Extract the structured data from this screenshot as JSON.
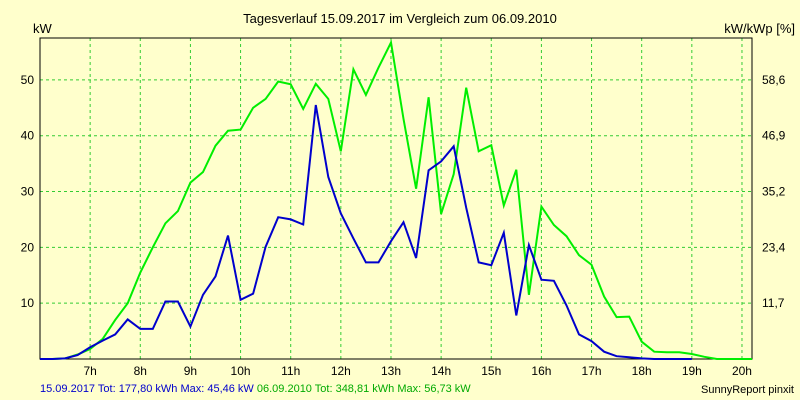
{
  "chart_data": {
    "type": "line",
    "title": "Tagesverlauf 15.09.2017 im Vergleich zum 06.09.2010",
    "ylabel": "kW",
    "y2label": "kW/kWp [%]",
    "xlim": [
      6,
      20.2
    ],
    "ylim": [
      0,
      57.5
    ],
    "categories": [
      "7h",
      "8h",
      "9h",
      "10h",
      "11h",
      "12h",
      "13h",
      "14h",
      "15h",
      "16h",
      "17h",
      "18h",
      "19h",
      "20h"
    ],
    "yticks": [
      10,
      20,
      30,
      40,
      50
    ],
    "y2ticks": [
      "11,7",
      "23,4",
      "35,2",
      "46,9",
      "58,6"
    ],
    "grid": true,
    "series": [
      {
        "color": "#0000cc",
        "x": [
          6.0,
          6.25,
          6.5,
          6.75,
          7.0,
          7.25,
          7.5,
          7.75,
          8.0,
          8.25,
          8.5,
          8.75,
          9.0,
          9.25,
          9.5,
          9.75,
          10.0,
          10.25,
          10.5,
          10.75,
          11.0,
          11.25,
          11.5,
          11.75,
          12.0,
          12.25,
          12.5,
          12.75,
          13.0,
          13.25,
          13.5,
          13.75,
          14.0,
          14.25,
          14.5,
          14.75,
          15.0,
          15.25,
          15.5,
          15.75,
          16.0,
          16.25,
          16.5,
          16.75,
          17.0,
          17.25,
          17.5,
          17.75,
          18.0,
          18.25,
          18.5,
          18.75,
          19.0
        ],
        "values": [
          0,
          0,
          0.1,
          0.7,
          2.1,
          3.3,
          4.4,
          7.1,
          5.4,
          5.4,
          10.3,
          10.3,
          5.8,
          11.5,
          14.8,
          22.1,
          10.6,
          11.7,
          20.1,
          25.4,
          25,
          24.1,
          45.5,
          32.6,
          26.1,
          21.6,
          17.3,
          17.3,
          21.1,
          24.5,
          18.1,
          33.8,
          35.4,
          38.1,
          27.1,
          17.3,
          16.8,
          22.6,
          7.8,
          20.4,
          14.2,
          14,
          9.6,
          4.4,
          3.2,
          1.3,
          0.5,
          0.3,
          0.1,
          0,
          0,
          0,
          0
        ]
      },
      {
        "color": "#00ee00",
        "x": [
          6.0,
          6.25,
          6.5,
          6.75,
          7.0,
          7.25,
          7.5,
          7.75,
          8.0,
          8.25,
          8.5,
          8.75,
          9.0,
          9.25,
          9.5,
          9.75,
          10.0,
          10.25,
          10.5,
          10.75,
          11.0,
          11.25,
          11.5,
          11.75,
          12.0,
          12.25,
          12.5,
          12.75,
          13.0,
          13.25,
          13.5,
          13.75,
          14.0,
          14.25,
          14.5,
          14.75,
          15.0,
          15.25,
          15.5,
          15.75,
          16.0,
          16.25,
          16.5,
          16.75,
          17.0,
          17.25,
          17.5,
          17.75,
          18.0,
          18.25,
          18.5,
          18.75,
          19.0,
          19.25,
          19.5,
          19.75,
          20.0,
          20.2
        ],
        "values": [
          0,
          0,
          0.1,
          0.8,
          1.8,
          3.6,
          7,
          10,
          15.5,
          20,
          24.3,
          26.5,
          31.6,
          33.5,
          38.2,
          40.9,
          41.1,
          45,
          46.6,
          49.7,
          49.2,
          44.8,
          49.3,
          46.6,
          37.2,
          51.9,
          47.3,
          52.2,
          56.7,
          43,
          30.5,
          46.9,
          26,
          33.1,
          48.6,
          37.2,
          38.3,
          27.5,
          33.9,
          11.5,
          27.3,
          24,
          22,
          18.6,
          16.9,
          11.2,
          7.5,
          7.6,
          3.1,
          1.3,
          1.2,
          1.2,
          0.9,
          0.4,
          0,
          0,
          0,
          0
        ]
      }
    ],
    "footer": {
      "blue": "15.09.2017 Tot: 177,80 kWh Max: 45,46 kW",
      "green": "06.09.2010 Tot: 348,81 kWh Max: 56,73 kW",
      "credit": "SunnyReport pinxit"
    }
  }
}
